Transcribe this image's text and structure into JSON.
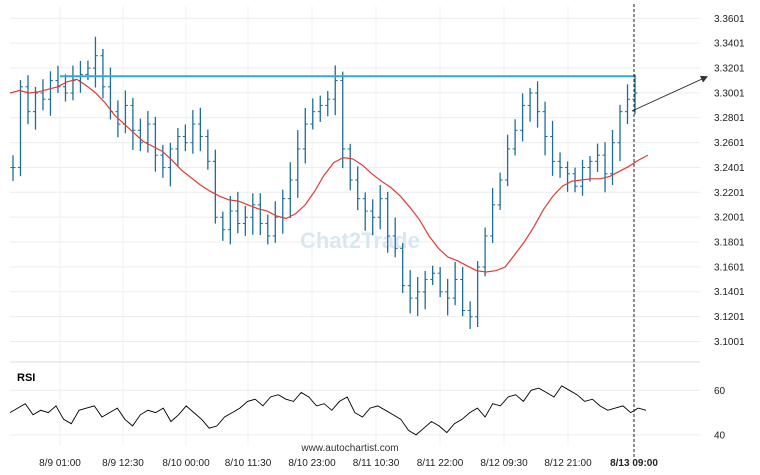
{
  "watermark": "Chat2Trade",
  "footer": "www.autochartist.com",
  "chart_data": [
    {
      "type": "ohlc-bars",
      "ylim": [
        3.09,
        3.37
      ],
      "y_ticks": [
        "3.3601",
        "3.3401",
        "3.3201",
        "3.3001",
        "3.2801",
        "3.2601",
        "3.2401",
        "3.2201",
        "3.2001",
        "3.1801",
        "3.1601",
        "3.1401",
        "3.1201",
        "3.1001"
      ],
      "x_ticks": [
        "8/9 01:00",
        "8/9 12:30",
        "8/10 00:00",
        "8/10 11:30",
        "8/10 23:00",
        "8/11 10:30",
        "8/11 22:00",
        "8/12 09:30",
        "8/12 21:00",
        "8/13 09:00"
      ],
      "resistance_level": 3.3135,
      "forecast_target": 3.3135,
      "price_series": [
        3.24,
        3.305,
        3.285,
        3.3,
        3.295,
        3.31,
        3.305,
        3.3,
        3.31,
        3.315,
        3.32,
        3.33,
        3.305,
        3.285,
        3.275,
        3.29,
        3.27,
        3.26,
        3.275,
        3.25,
        3.24,
        3.255,
        3.265,
        3.26,
        3.275,
        3.265,
        3.245,
        3.2,
        3.19,
        3.205,
        3.195,
        3.2,
        3.21,
        3.195,
        3.185,
        3.2,
        3.215,
        3.23,
        3.255,
        3.275,
        3.285,
        3.29,
        3.295,
        3.31,
        3.255,
        3.23,
        3.215,
        3.205,
        3.2,
        3.215,
        3.185,
        3.175,
        3.145,
        3.135,
        3.14,
        3.15,
        3.155,
        3.14,
        3.135,
        3.15,
        3.125,
        3.12,
        3.16,
        3.185,
        3.21,
        3.23,
        3.255,
        3.27,
        3.29,
        3.3,
        3.285,
        3.265,
        3.245,
        3.24,
        3.235,
        3.225,
        3.24,
        3.245,
        3.25,
        3.235,
        3.26,
        3.285,
        3.295,
        3.3
      ],
      "moving_average": [
        3.3,
        3.302,
        3.3,
        3.301,
        3.303,
        3.305,
        3.309,
        3.311,
        3.306,
        3.3,
        3.292,
        3.282,
        3.275,
        3.268,
        3.261,
        3.257,
        3.253,
        3.246,
        3.238,
        3.232,
        3.226,
        3.221,
        3.217,
        3.214,
        3.213,
        3.21,
        3.207,
        3.205,
        3.201,
        3.199,
        3.203,
        3.21,
        3.221,
        3.234,
        3.244,
        3.248,
        3.247,
        3.242,
        3.235,
        3.229,
        3.224,
        3.217,
        3.208,
        3.198,
        3.185,
        3.175,
        3.168,
        3.165,
        3.161,
        3.157,
        3.156,
        3.157,
        3.16,
        3.17,
        3.18,
        3.192,
        3.206,
        3.217,
        3.225,
        3.229,
        3.23,
        3.231,
        3.231,
        3.233,
        3.237,
        3.241,
        3.246,
        3.25
      ]
    },
    {
      "type": "line",
      "title": "RSI",
      "ylim": [
        35,
        70
      ],
      "y_ticks": [
        "60",
        "40"
      ],
      "values": [
        50,
        52,
        54,
        49,
        51,
        50,
        53,
        47,
        45,
        51,
        52,
        53,
        48,
        50,
        52,
        47,
        44,
        49,
        51,
        50,
        52,
        46,
        49,
        53,
        50,
        47,
        43,
        44,
        48,
        50,
        52,
        55,
        56,
        53,
        57,
        58,
        56,
        55,
        59,
        57,
        53,
        54,
        51,
        55,
        57,
        50,
        48,
        52,
        53,
        51,
        49,
        47,
        42,
        40,
        43,
        46,
        44,
        41,
        45,
        47,
        50,
        52,
        48,
        54,
        53,
        57,
        58,
        55,
        60,
        61,
        59,
        57,
        62,
        60,
        58,
        55,
        56,
        53,
        51,
        52,
        53,
        50,
        52,
        51
      ]
    }
  ]
}
